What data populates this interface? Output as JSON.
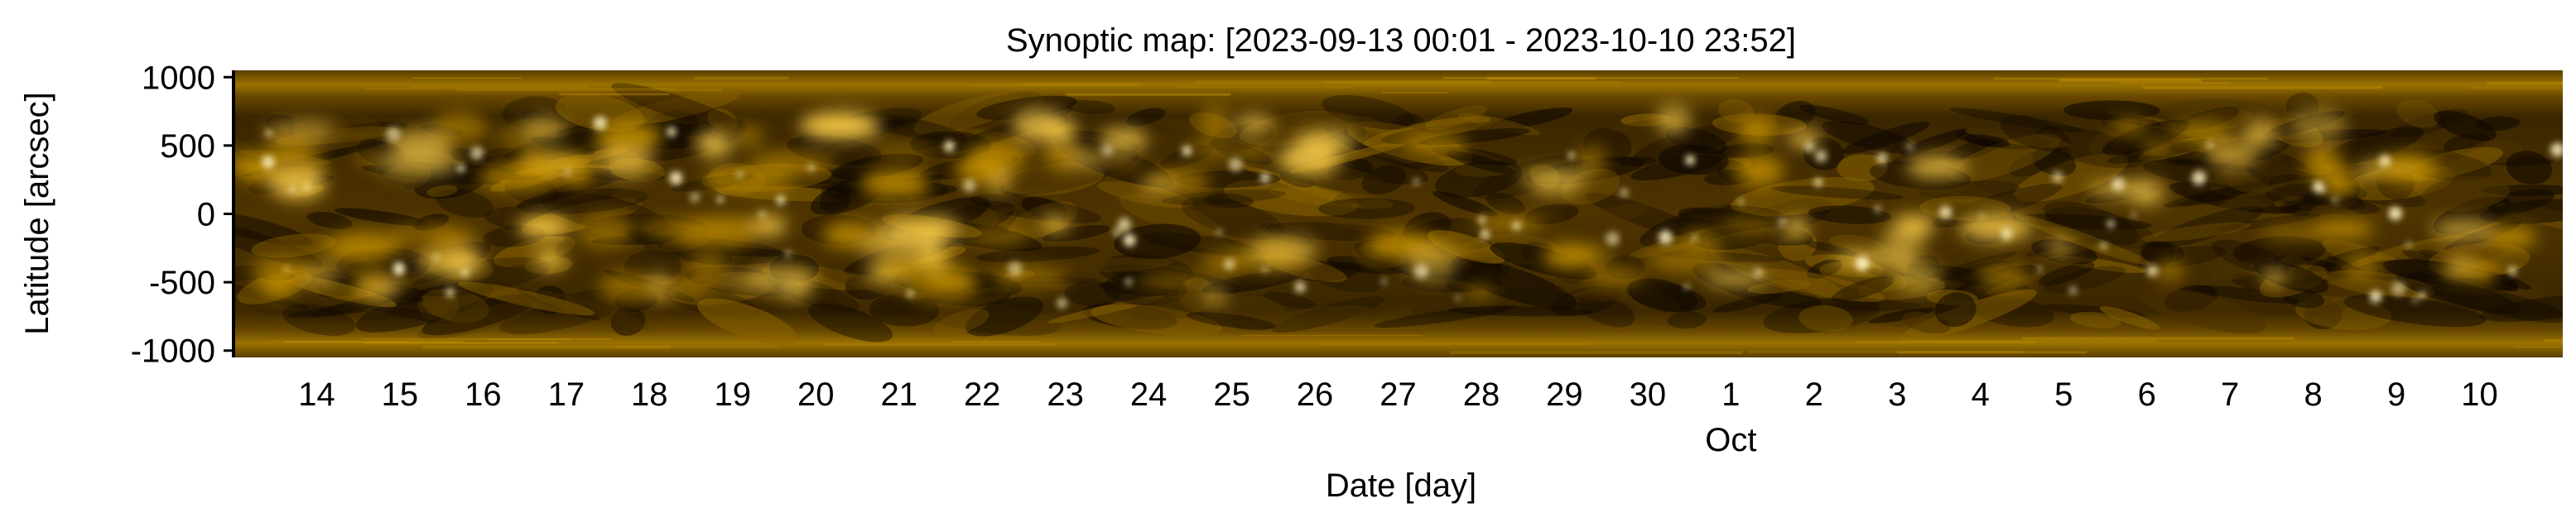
{
  "chart_data": {
    "type": "heatmap",
    "title": "Synoptic map: [2023-09-13 00:01 - 2023-10-10 23:52]",
    "xlabel": "Date [day]",
    "ylabel": "Latitude [arcsec]",
    "xlim": [
      "2023-09-13",
      "2023-10-11"
    ],
    "ylim": [
      -1050,
      1050
    ],
    "y_ticks": [
      {
        "value": 1000,
        "label": "1000"
      },
      {
        "value": 500,
        "label": "500"
      },
      {
        "value": 0,
        "label": "0"
      },
      {
        "value": -500,
        "label": "-500"
      },
      {
        "value": -1000,
        "label": "-1000"
      }
    ],
    "x_ticks": [
      {
        "date": "2023-09-14",
        "label": "14"
      },
      {
        "date": "2023-09-15",
        "label": "15"
      },
      {
        "date": "2023-09-16",
        "label": "16"
      },
      {
        "date": "2023-09-17",
        "label": "17"
      },
      {
        "date": "2023-09-18",
        "label": "18"
      },
      {
        "date": "2023-09-19",
        "label": "19"
      },
      {
        "date": "2023-09-20",
        "label": "20"
      },
      {
        "date": "2023-09-21",
        "label": "21"
      },
      {
        "date": "2023-09-22",
        "label": "22"
      },
      {
        "date": "2023-09-23",
        "label": "23"
      },
      {
        "date": "2023-09-24",
        "label": "24"
      },
      {
        "date": "2023-09-25",
        "label": "25"
      },
      {
        "date": "2023-09-26",
        "label": "26"
      },
      {
        "date": "2023-09-27",
        "label": "27"
      },
      {
        "date": "2023-09-28",
        "label": "28"
      },
      {
        "date": "2023-09-29",
        "label": "29"
      },
      {
        "date": "2023-09-30",
        "label": "30"
      },
      {
        "date": "2023-10-01",
        "label": "1"
      },
      {
        "date": "2023-10-02",
        "label": "2"
      },
      {
        "date": "2023-10-03",
        "label": "3"
      },
      {
        "date": "2023-10-04",
        "label": "4"
      },
      {
        "date": "2023-10-05",
        "label": "5"
      },
      {
        "date": "2023-10-06",
        "label": "6"
      },
      {
        "date": "2023-10-07",
        "label": "7"
      },
      {
        "date": "2023-10-08",
        "label": "8"
      },
      {
        "date": "2023-10-09",
        "label": "9"
      },
      {
        "date": "2023-10-10",
        "label": "10"
      }
    ],
    "x_secondary_label": {
      "date": "2023-10-01",
      "label": "Oct"
    },
    "colormap": [
      "#0e0700",
      "#4a3200",
      "#8a6300",
      "#c89400",
      "#ffd24a",
      "#fff4c2"
    ],
    "grid": false
  }
}
